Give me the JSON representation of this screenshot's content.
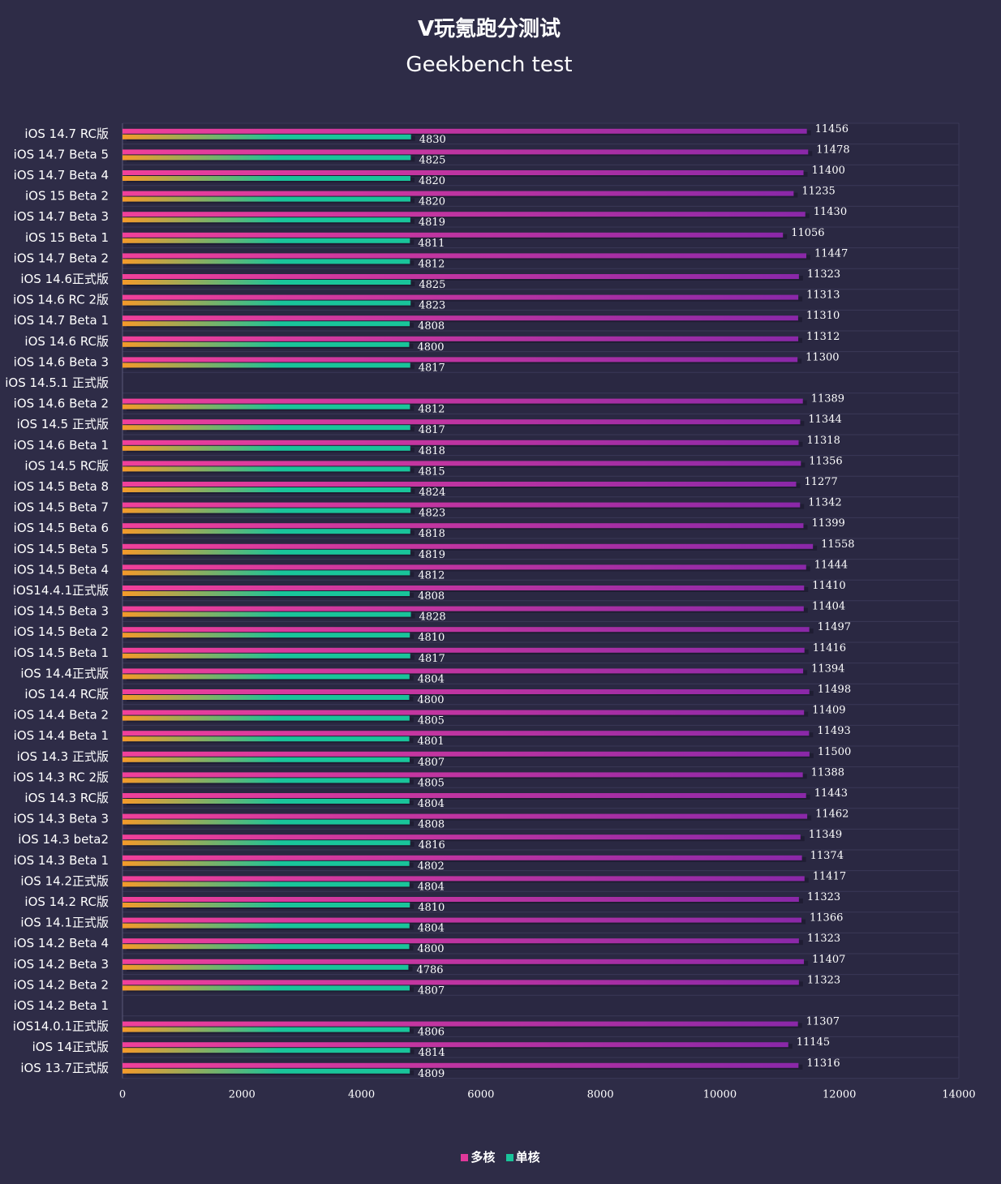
{
  "chart_data": {
    "type": "bar",
    "orientation": "horizontal",
    "title": "V玩氪跑分测试",
    "subtitle": "Geekbench test",
    "categories": [
      "iOS 14.7 RC版",
      "iOS 14.7 Beta 5",
      "iOS 14.7 Beta 4",
      "iOS 15 Beta 2",
      "iOS 14.7 Beta 3",
      "iOS 15 Beta 1",
      "iOS 14.7 Beta 2",
      "iOS 14.6正式版",
      "iOS 14.6 RC 2版",
      "iOS 14.7 Beta 1",
      "iOS 14.6 RC版",
      "iOS 14.6 Beta 3",
      "iOS 14.5.1 正式版",
      "iOS 14.6 Beta 2",
      "iOS 14.5 正式版",
      "iOS 14.6 Beta 1",
      "iOS 14.5 RC版",
      "iOS 14.5 Beta 8",
      "iOS 14.5 Beta 7",
      "iOS 14.5 Beta 6",
      "iOS 14.5 Beta 5",
      "iOS 14.5 Beta 4",
      "iOS14.4.1正式版",
      "iOS 14.5 Beta 3",
      "iOS 14.5 Beta 2",
      "iOS 14.5 Beta 1",
      "iOS 14.4正式版",
      "iOS 14.4 RC版",
      "iOS 14.4 Beta 2",
      "iOS 14.4 Beta 1",
      "iOS 14.3 正式版",
      "iOS 14.3 RC 2版",
      "iOS 14.3 RC版",
      "iOS 14.3 Beta 3",
      "iOS 14.3 beta2",
      "iOS 14.3 Beta 1",
      "iOS 14.2正式版",
      "iOS 14.2 RC版",
      "iOS 14.1正式版",
      "iOS 14.2 Beta 4",
      "iOS 14.2 Beta 3",
      "iOS 14.2 Beta 2",
      "iOS 14.2 Beta 1",
      "iOS14.0.1正式版",
      "iOS 14正式版",
      "iOS 13.7正式版"
    ],
    "series": [
      {
        "name": "多核",
        "color": "#e0389a",
        "values": [
          11456,
          11478,
          11400,
          11235,
          11430,
          11056,
          11447,
          11323,
          11313,
          11310,
          11312,
          11300,
          null,
          11389,
          11344,
          11318,
          11356,
          11277,
          11342,
          11399,
          11558,
          11444,
          11410,
          11404,
          11497,
          11416,
          11394,
          11498,
          11409,
          11493,
          11500,
          11388,
          11443,
          11462,
          11349,
          11374,
          11417,
          11323,
          11366,
          11323,
          11407,
          11323,
          null,
          11307,
          11145,
          11316
        ]
      },
      {
        "name": "单核",
        "color": "#19c49a",
        "values": [
          4830,
          4825,
          4820,
          4820,
          4819,
          4811,
          4812,
          4825,
          4823,
          4808,
          4800,
          4817,
          null,
          4812,
          4817,
          4818,
          4815,
          4824,
          4823,
          4818,
          4819,
          4812,
          4808,
          4828,
          4810,
          4817,
          4804,
          4800,
          4805,
          4801,
          4807,
          4805,
          4804,
          4808,
          4816,
          4802,
          4804,
          4810,
          4804,
          4800,
          4786,
          4807,
          null,
          4806,
          4814,
          4809
        ]
      }
    ],
    "xlim": [
      0,
      14000
    ],
    "xticks": [
      0,
      2000,
      4000,
      6000,
      8000,
      10000,
      12000,
      14000
    ],
    "grid": true,
    "legend_position": "bottom"
  },
  "colors": {
    "background": "#2e2c47",
    "plot_background": "#2a2842",
    "multi_start": "#f0409a",
    "multi_end": "#8a28a8",
    "single_start": "#f59a2a",
    "single_end": "#19c49a"
  }
}
